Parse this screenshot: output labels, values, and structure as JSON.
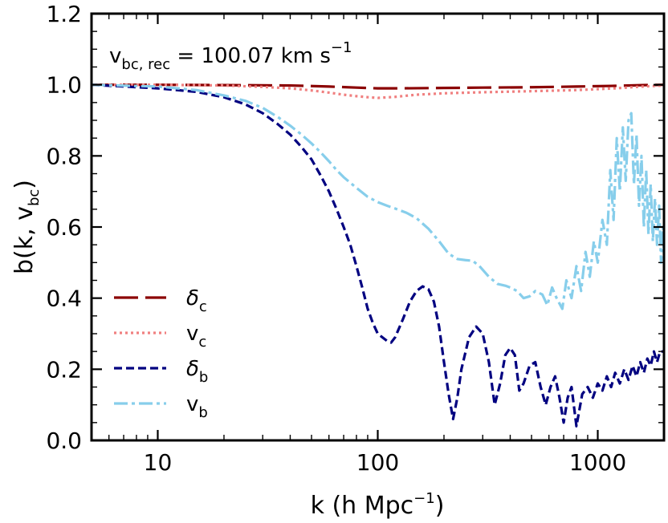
{
  "chart_data": {
    "type": "line",
    "xscale": "log",
    "xlim": [
      5,
      2000
    ],
    "ylim": [
      0.0,
      1.2
    ],
    "xticks": [
      10,
      100,
      1000
    ],
    "xtick_labels": [
      "10",
      "100",
      "1000"
    ],
    "yticks": [
      0.0,
      0.2,
      0.4,
      0.6,
      0.8,
      1.0,
      1.2
    ],
    "ytick_labels": [
      "0.0",
      "0.2",
      "0.4",
      "0.6",
      "0.8",
      "1.0",
      "1.2"
    ],
    "xlabel": {
      "main": "k (h Mpc",
      "sup": "−1",
      "tail": ")"
    },
    "ylabel": {
      "main": "b(k, v",
      "sub": "bc",
      "tail": ")"
    },
    "annotation": {
      "main": "v",
      "sub": "bc, rec",
      "mid": " = 100.07 km s",
      "sup": "−1"
    },
    "legend_position": "lower-left",
    "series": [
      {
        "name": "δc",
        "name_main": "δ",
        "name_sub": "c",
        "color": "#8b0000",
        "style": "long-dash",
        "points": [
          [
            5,
            1.0
          ],
          [
            10,
            1.0
          ],
          [
            20,
            0.999
          ],
          [
            40,
            0.998
          ],
          [
            60,
            0.995
          ],
          [
            80,
            0.992
          ],
          [
            100,
            0.99
          ],
          [
            130,
            0.99
          ],
          [
            200,
            0.991
          ],
          [
            300,
            0.992
          ],
          [
            500,
            0.993
          ],
          [
            800,
            0.995
          ],
          [
            1200,
            0.997
          ],
          [
            1600,
            0.999
          ],
          [
            2000,
            1.0
          ]
        ]
      },
      {
        "name": "vc",
        "name_main": "v",
        "name_sub": "c",
        "color": "#f08080",
        "style": "dotted",
        "points": [
          [
            5,
            1.0
          ],
          [
            10,
            1.0
          ],
          [
            20,
            0.998
          ],
          [
            30,
            0.994
          ],
          [
            40,
            0.99
          ],
          [
            50,
            0.984
          ],
          [
            60,
            0.978
          ],
          [
            70,
            0.972
          ],
          [
            80,
            0.968
          ],
          [
            90,
            0.965
          ],
          [
            100,
            0.963
          ],
          [
            120,
            0.966
          ],
          [
            150,
            0.972
          ],
          [
            200,
            0.976
          ],
          [
            300,
            0.979
          ],
          [
            500,
            0.982
          ],
          [
            800,
            0.985
          ],
          [
            1200,
            0.99
          ],
          [
            1600,
            0.995
          ],
          [
            2000,
            0.998
          ]
        ]
      },
      {
        "name": "δb",
        "name_main": "δ",
        "name_sub": "b",
        "color": "#000080",
        "style": "dashed",
        "points": [
          [
            5,
            1.0
          ],
          [
            10,
            0.99
          ],
          [
            15,
            0.98
          ],
          [
            20,
            0.965
          ],
          [
            25,
            0.945
          ],
          [
            30,
            0.92
          ],
          [
            35,
            0.89
          ],
          [
            40,
            0.86
          ],
          [
            45,
            0.825
          ],
          [
            50,
            0.79
          ],
          [
            55,
            0.745
          ],
          [
            60,
            0.7
          ],
          [
            65,
            0.65
          ],
          [
            70,
            0.6
          ],
          [
            75,
            0.55
          ],
          [
            80,
            0.49
          ],
          [
            85,
            0.43
          ],
          [
            90,
            0.37
          ],
          [
            95,
            0.33
          ],
          [
            100,
            0.3
          ],
          [
            110,
            0.28
          ],
          [
            115,
            0.275
          ],
          [
            120,
            0.29
          ],
          [
            130,
            0.34
          ],
          [
            140,
            0.39
          ],
          [
            150,
            0.42
          ],
          [
            160,
            0.433
          ],
          [
            170,
            0.425
          ],
          [
            180,
            0.39
          ],
          [
            190,
            0.32
          ],
          [
            200,
            0.22
          ],
          [
            210,
            0.13
          ],
          [
            220,
            0.06
          ],
          [
            230,
            0.12
          ],
          [
            240,
            0.2
          ],
          [
            260,
            0.29
          ],
          [
            280,
            0.32
          ],
          [
            300,
            0.3
          ],
          [
            320,
            0.22
          ],
          [
            340,
            0.1
          ],
          [
            360,
            0.16
          ],
          [
            380,
            0.24
          ],
          [
            400,
            0.26
          ],
          [
            420,
            0.24
          ],
          [
            440,
            0.14
          ],
          [
            460,
            0.16
          ],
          [
            490,
            0.21
          ],
          [
            520,
            0.22
          ],
          [
            550,
            0.15
          ],
          [
            580,
            0.1
          ],
          [
            610,
            0.15
          ],
          [
            640,
            0.18
          ],
          [
            670,
            0.12
          ],
          [
            700,
            0.05
          ],
          [
            730,
            0.12
          ],
          [
            760,
            0.15
          ],
          [
            800,
            0.04
          ],
          [
            850,
            0.13
          ],
          [
            900,
            0.15
          ],
          [
            950,
            0.12
          ],
          [
            1000,
            0.16
          ],
          [
            1050,
            0.14
          ],
          [
            1100,
            0.18
          ],
          [
            1150,
            0.15
          ],
          [
            1200,
            0.19
          ],
          [
            1260,
            0.16
          ],
          [
            1320,
            0.2
          ],
          [
            1380,
            0.17
          ],
          [
            1440,
            0.21
          ],
          [
            1500,
            0.18
          ],
          [
            1560,
            0.22
          ],
          [
            1620,
            0.19
          ],
          [
            1680,
            0.23
          ],
          [
            1740,
            0.21
          ],
          [
            1800,
            0.25
          ],
          [
            1860,
            0.22
          ],
          [
            1920,
            0.25
          ],
          [
            2000,
            0.25
          ]
        ]
      },
      {
        "name": "vb",
        "name_main": "v",
        "name_sub": "b",
        "color": "#87ceeb",
        "style": "dash-dot",
        "points": [
          [
            5,
            1.0
          ],
          [
            10,
            0.995
          ],
          [
            15,
            0.985
          ],
          [
            20,
            0.97
          ],
          [
            25,
            0.955
          ],
          [
            30,
            0.935
          ],
          [
            35,
            0.91
          ],
          [
            40,
            0.885
          ],
          [
            45,
            0.86
          ],
          [
            50,
            0.835
          ],
          [
            55,
            0.81
          ],
          [
            60,
            0.785
          ],
          [
            65,
            0.76
          ],
          [
            70,
            0.74
          ],
          [
            80,
            0.71
          ],
          [
            90,
            0.685
          ],
          [
            100,
            0.67
          ],
          [
            110,
            0.66
          ],
          [
            120,
            0.652
          ],
          [
            135,
            0.64
          ],
          [
            150,
            0.625
          ],
          [
            170,
            0.595
          ],
          [
            190,
            0.56
          ],
          [
            210,
            0.525
          ],
          [
            230,
            0.51
          ],
          [
            250,
            0.507
          ],
          [
            270,
            0.505
          ],
          [
            290,
            0.49
          ],
          [
            320,
            0.46
          ],
          [
            350,
            0.44
          ],
          [
            380,
            0.435
          ],
          [
            400,
            0.43
          ],
          [
            430,
            0.42
          ],
          [
            460,
            0.4
          ],
          [
            490,
            0.405
          ],
          [
            520,
            0.42
          ],
          [
            560,
            0.41
          ],
          [
            590,
            0.38
          ],
          [
            620,
            0.43
          ],
          [
            650,
            0.4
          ],
          [
            690,
            0.37
          ],
          [
            720,
            0.45
          ],
          [
            760,
            0.4
          ],
          [
            800,
            0.49
          ],
          [
            840,
            0.42
          ],
          [
            880,
            0.53
          ],
          [
            920,
            0.46
          ],
          [
            960,
            0.56
          ],
          [
            1000,
            0.5
          ],
          [
            1050,
            0.62
          ],
          [
            1100,
            0.55
          ],
          [
            1140,
            0.76
          ],
          [
            1180,
            0.62
          ],
          [
            1220,
            0.85
          ],
          [
            1260,
            0.7
          ],
          [
            1300,
            0.88
          ],
          [
            1340,
            0.73
          ],
          [
            1380,
            0.9
          ],
          [
            1420,
            0.92
          ],
          [
            1460,
            0.72
          ],
          [
            1500,
            0.86
          ],
          [
            1540,
            0.66
          ],
          [
            1580,
            0.8
          ],
          [
            1620,
            0.6
          ],
          [
            1660,
            0.76
          ],
          [
            1700,
            0.58
          ],
          [
            1740,
            0.72
          ],
          [
            1780,
            0.56
          ],
          [
            1820,
            0.68
          ],
          [
            1860,
            0.55
          ],
          [
            1900,
            0.66
          ],
          [
            1940,
            0.5
          ],
          [
            1980,
            0.6
          ],
          [
            2000,
            0.52
          ]
        ]
      }
    ]
  }
}
